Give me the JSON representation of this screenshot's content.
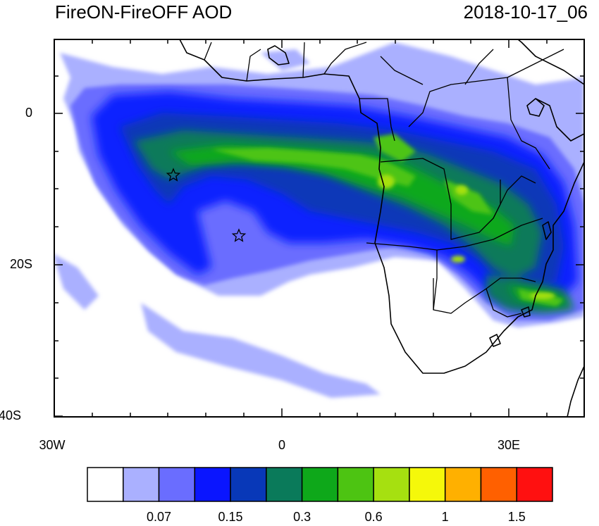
{
  "title": {
    "left": "FireON-FireOFF AOD",
    "right": "2018-10-17_06"
  },
  "axes": {
    "lat_ticks": [
      {
        "label": "0",
        "value": 0
      },
      {
        "label": "20S",
        "value": -20
      },
      {
        "label": "40S",
        "value": -40
      }
    ],
    "lon_ticks": [
      {
        "label": "30W",
        "value": -30
      },
      {
        "label": "0",
        "value": 0
      },
      {
        "label": "30E",
        "value": 30
      }
    ],
    "lon_range": [
      -30,
      40
    ],
    "lat_range": [
      -40,
      10
    ]
  },
  "colorbar": {
    "colors": [
      "#ffffff",
      "#aab0ff",
      "#6a6dff",
      "#0a15ff",
      "#0838b8",
      "#0a7a5a",
      "#0ea81a",
      "#4dc412",
      "#a6e010",
      "#f5f80a",
      "#ffb000",
      "#ff6000",
      "#ff1010"
    ],
    "labels": [
      {
        "text": "0.07",
        "boundary": 2
      },
      {
        "text": "0.15",
        "boundary": 4
      },
      {
        "text": "0.3",
        "boundary": 6
      },
      {
        "text": "0.6",
        "boundary": 8
      },
      {
        "text": "1",
        "boundary": 10
      },
      {
        "text": "1.5",
        "boundary": 12
      }
    ]
  },
  "markers": [
    {
      "name": "star-marker-1",
      "lon": -14.4,
      "lat": -8
    },
    {
      "name": "star-marker-2",
      "lon": -5.7,
      "lat": -16
    }
  ]
}
